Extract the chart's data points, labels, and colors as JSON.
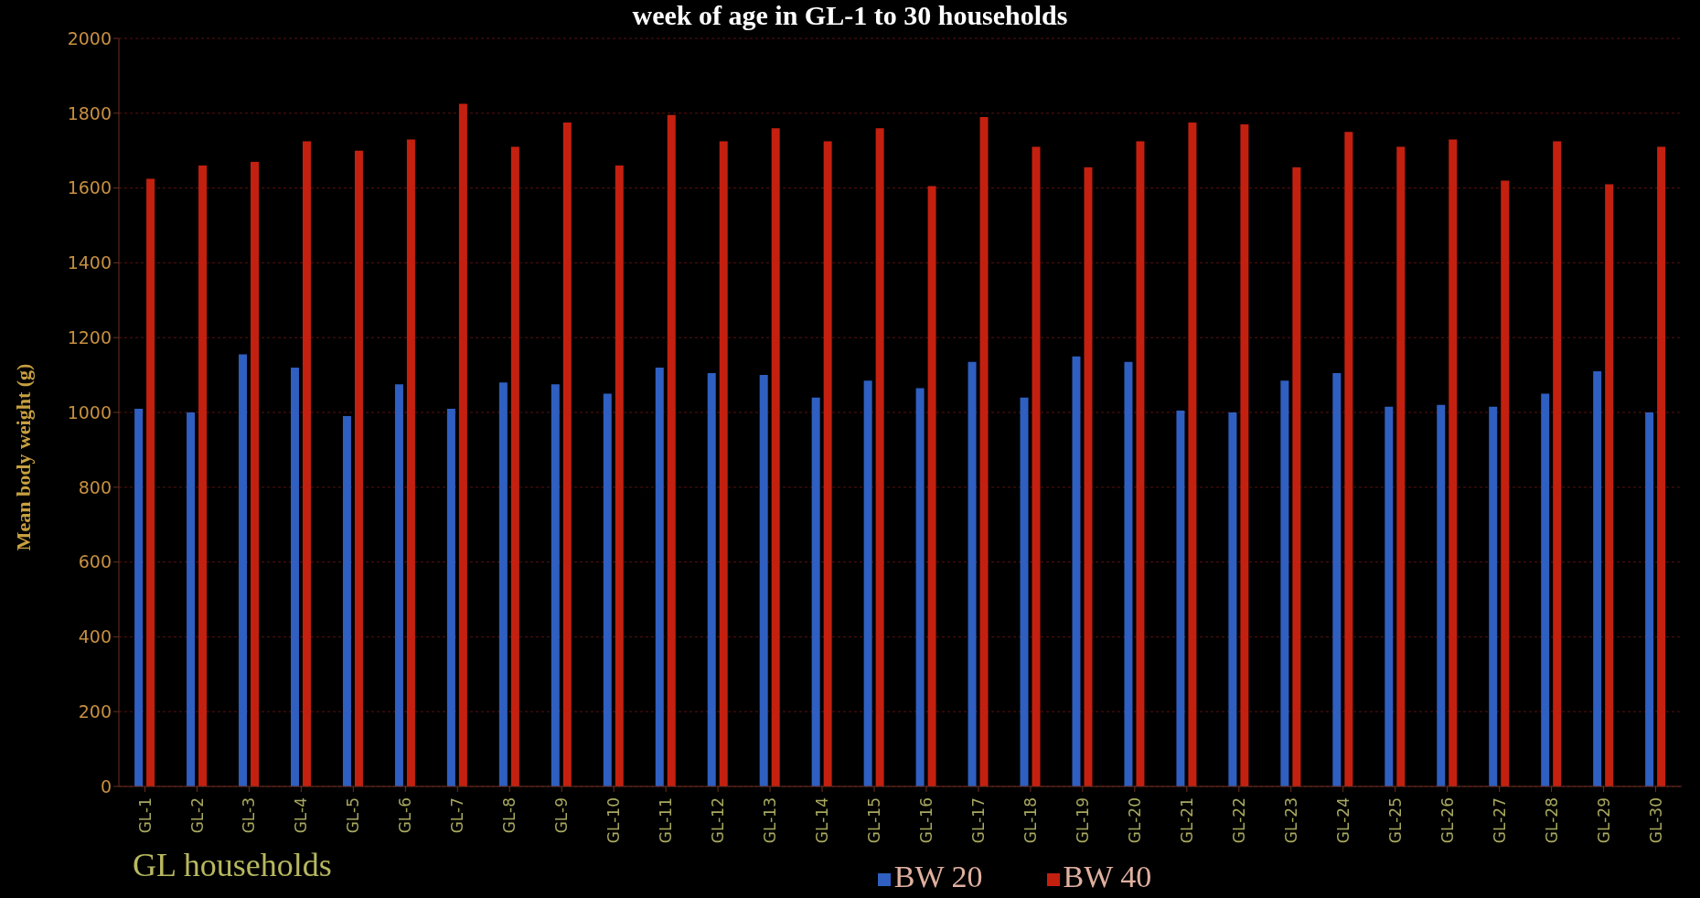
{
  "chart_data": {
    "type": "bar",
    "title": "week of age in GL-1 to 30 households",
    "xlabel": "GL households",
    "ylabel": "Mean body weight (g)",
    "categories": [
      "GL-1",
      "GL-2",
      "GL-3",
      "GL-4",
      "GL-5",
      "GL-6",
      "GL-7",
      "GL-8",
      "GL-9",
      "GL-10",
      "GL-11",
      "GL-12",
      "GL-13",
      "GL-14",
      "GL-15",
      "GL-16",
      "GL-17",
      "GL-18",
      "GL-19",
      "GL-20",
      "GL-21",
      "GL-22",
      "GL-23",
      "GL-24",
      "GL-25",
      "GL-26",
      "GL-27",
      "GL-28",
      "GL-29",
      "GL-30"
    ],
    "series": [
      {
        "name": "BW 20",
        "color": "#2f5fc0",
        "values": [
          1010,
          1000,
          1155,
          1120,
          990,
          1075,
          1010,
          1080,
          1075,
          1050,
          1120,
          1105,
          1100,
          1040,
          1085,
          1065,
          1135,
          1040,
          1150,
          1135,
          1005,
          1000,
          1085,
          1105,
          1015,
          1020,
          1015,
          1050,
          1110,
          1000
        ]
      },
      {
        "name": "BW 40",
        "color": "#c42010",
        "values": [
          1625,
          1660,
          1670,
          1725,
          1700,
          1730,
          1825,
          1710,
          1775,
          1660,
          1795,
          1725,
          1760,
          1725,
          1760,
          1605,
          1790,
          1710,
          1655,
          1725,
          1775,
          1770,
          1655,
          1750,
          1710,
          1730,
          1620,
          1725,
          1610,
          1710
        ]
      }
    ],
    "ylim": [
      0,
      2000
    ],
    "yticks": [
      0,
      200,
      400,
      600,
      800,
      1000,
      1200,
      1400,
      1600,
      1800,
      2000
    ],
    "grid": "y",
    "legend": "bottom"
  }
}
